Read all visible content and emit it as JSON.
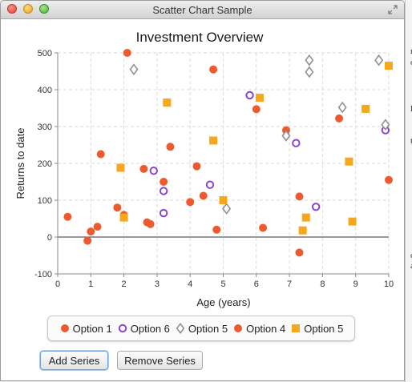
{
  "window": {
    "title": "Scatter Chart Sample"
  },
  "edge": {
    "marks": [
      "m",
      "o",
      "l",
      "t",
      "c",
      "a"
    ]
  },
  "buttons": {
    "add": "Add Series",
    "remove": "Remove Series"
  },
  "colors": {
    "red": "#ee5a2f",
    "purple": "#8a44cf",
    "gray": "#8f8f8f",
    "orange": "#f7a71b"
  },
  "chart_data": {
    "type": "scatter",
    "title": "Investment Overview",
    "xlabel": "Age (years)",
    "ylabel": "Returns to date",
    "xlim": [
      0,
      10
    ],
    "ylim": [
      -100,
      500
    ],
    "xticks": [
      "0",
      "1",
      "2",
      "3",
      "4",
      "5",
      "6",
      "7",
      "8",
      "9",
      "10"
    ],
    "yticks": [
      "-100",
      "0",
      "100",
      "200",
      "300",
      "400",
      "500"
    ],
    "grid": true,
    "legend_position": "bottom",
    "series": [
      {
        "name": "Option 1",
        "marker": "circle",
        "color": "#ee5a2f",
        "points": [
          [
            0.3,
            55
          ],
          [
            0.9,
            -10
          ],
          [
            1.0,
            15
          ],
          [
            1.2,
            28
          ],
          [
            1.3,
            225
          ],
          [
            1.8,
            80
          ],
          [
            2.0,
            60
          ],
          [
            2.1,
            500
          ],
          [
            2.6,
            185
          ],
          [
            2.7,
            40
          ],
          [
            2.8,
            35
          ],
          [
            3.2,
            150
          ],
          [
            3.4,
            245
          ],
          [
            4.0,
            95
          ],
          [
            4.2,
            192
          ],
          [
            4.4,
            112
          ],
          [
            4.7,
            455
          ],
          [
            4.8,
            20
          ],
          [
            6.0,
            347
          ],
          [
            6.2,
            25
          ],
          [
            6.9,
            290
          ],
          [
            7.3,
            110
          ],
          [
            7.3,
            -42
          ],
          [
            8.5,
            322
          ],
          [
            10.0,
            155
          ]
        ]
      },
      {
        "name": "Option 6",
        "marker": "ring",
        "color": "#8a44cf",
        "points": [
          [
            2.9,
            180
          ],
          [
            3.2,
            125
          ],
          [
            3.2,
            65
          ],
          [
            4.6,
            142
          ],
          [
            5.8,
            385
          ],
          [
            7.2,
            255
          ],
          [
            7.8,
            82
          ],
          [
            9.9,
            290
          ]
        ]
      },
      {
        "name": "Option 5",
        "marker": "diamond",
        "color": "#8f8f8f",
        "points": [
          [
            2.3,
            455
          ],
          [
            5.1,
            77
          ],
          [
            6.9,
            275
          ],
          [
            7.6,
            480
          ],
          [
            7.6,
            448
          ],
          [
            8.6,
            352
          ],
          [
            9.7,
            480
          ],
          [
            9.9,
            305
          ]
        ]
      },
      {
        "name": "Option 4",
        "marker": "circle",
        "color": "#ee5a2f",
        "points": []
      },
      {
        "name": "Option 5",
        "marker": "square",
        "color": "#f7a71b",
        "points": [
          [
            1.9,
            188
          ],
          [
            2.0,
            53
          ],
          [
            3.3,
            365
          ],
          [
            4.7,
            262
          ],
          [
            5.0,
            100
          ],
          [
            6.1,
            378
          ],
          [
            7.4,
            18
          ],
          [
            7.5,
            53
          ],
          [
            8.8,
            205
          ],
          [
            8.9,
            42
          ],
          [
            9.3,
            348
          ],
          [
            10.0,
            465
          ]
        ]
      }
    ]
  }
}
